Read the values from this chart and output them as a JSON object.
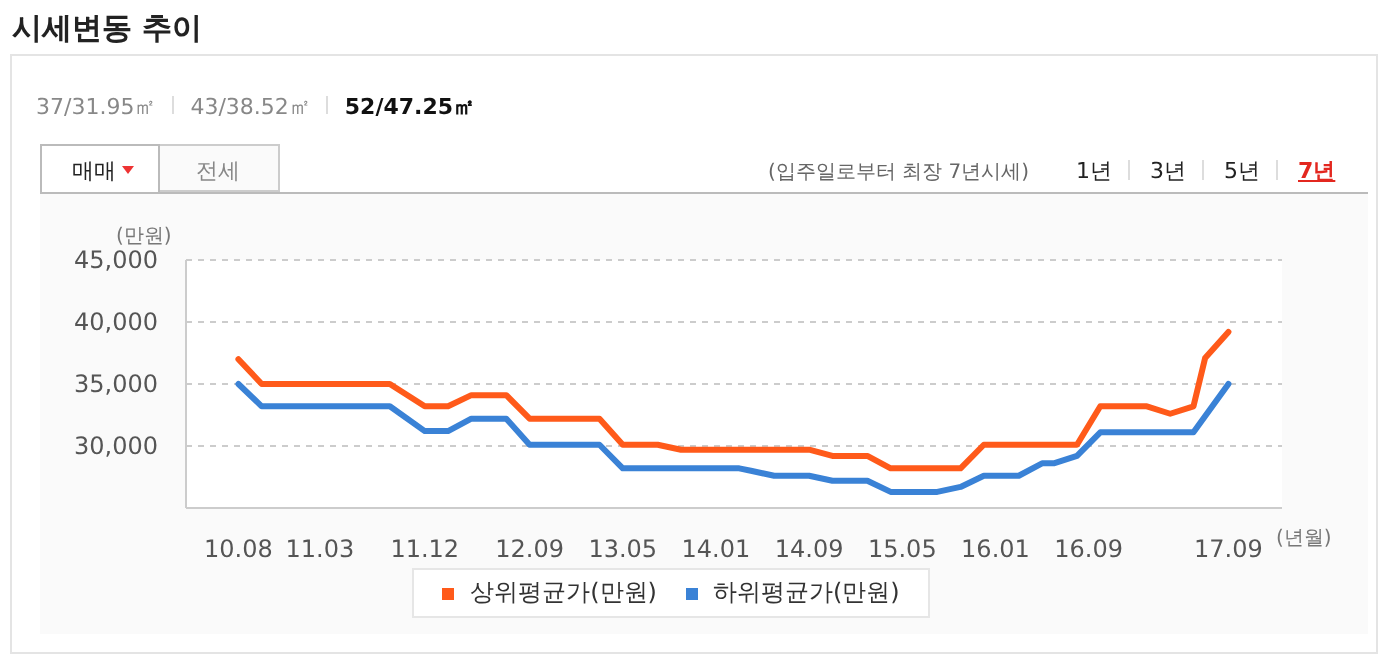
{
  "chart_data": {
    "type": "line",
    "title": "시세변동 추이",
    "annotations": [
      "37/31.95㎡",
      "43/38.52㎡",
      "52/47.25㎡",
      "매매",
      "전세",
      "(입주일로부터 최장 7년시세)",
      "1년",
      "3년",
      "5년",
      "7년"
    ],
    "ylabel": "(만원)",
    "xlabel": "(년월)",
    "xlim": [
      "2010-03-16",
      "2018-01-19"
    ],
    "xticks": [
      {
        "value": "2010-08",
        "label": "10.08"
      },
      {
        "value": "2011-03",
        "label": "11.03"
      },
      {
        "value": "2011-12",
        "label": "11.12"
      },
      {
        "value": "2012-09",
        "label": "12.09"
      },
      {
        "value": "2013-05",
        "label": "13.05"
      },
      {
        "value": "2014-01",
        "label": "14.01"
      },
      {
        "value": "2014-09",
        "label": "14.09"
      },
      {
        "value": "2015-05",
        "label": "15.05"
      },
      {
        "value": "2016-01",
        "label": "16.01"
      },
      {
        "value": "2016-09",
        "label": "16.09"
      },
      {
        "value": "2017-09",
        "label": "17.09"
      }
    ],
    "ylim": [
      25000,
      45000
    ],
    "yticks": [
      {
        "value": 25000,
        "label": null
      },
      {
        "value": 30000,
        "label": "30,000"
      },
      {
        "value": 35000,
        "label": "35,000"
      },
      {
        "value": 40000,
        "label": "40,000"
      },
      {
        "value": 45000,
        "label": "45,000"
      }
    ],
    "grid": "y",
    "legend": "bottom",
    "series": [
      {
        "name": "상위평균가(만원)",
        "color": "#ff5a1a",
        "x": [
          "2010-08",
          "2010-10",
          "2011-09",
          "2011-12",
          "2012-02",
          "2012-04",
          "2012-07",
          "2012-09",
          "2013-03",
          "2013-05",
          "2013-08",
          "2013-10",
          "2014-09",
          "2014-11",
          "2015-02",
          "2015-04",
          "2015-10",
          "2015-12",
          "2016-08",
          "2016-10",
          "2017-02",
          "2017-04",
          "2017-06",
          "2017-07",
          "2017-09"
        ],
        "values": [
          37000,
          35000,
          35000,
          33200,
          33200,
          34100,
          34100,
          32200,
          32200,
          30100,
          30100,
          29700,
          29700,
          29200,
          29200,
          28200,
          28200,
          30100,
          30100,
          33200,
          33200,
          32600,
          33200,
          37100,
          39200
        ]
      },
      {
        "name": "하위평균가(만원)",
        "color": "#3a82d6",
        "x": [
          "2010-08",
          "2010-10",
          "2011-09",
          "2011-12",
          "2012-02",
          "2012-04",
          "2012-07",
          "2012-09",
          "2013-03",
          "2013-05",
          "2014-03",
          "2014-04",
          "2014-06",
          "2014-09",
          "2014-11",
          "2015-02",
          "2015-04",
          "2015-08",
          "2015-10",
          "2015-12",
          "2016-03",
          "2016-05",
          "2016-06",
          "2016-08",
          "2016-10",
          "2017-06",
          "2017-09"
        ],
        "values": [
          35000,
          33200,
          33200,
          31200,
          31200,
          32200,
          32200,
          30100,
          30100,
          28200,
          28200,
          28000,
          27600,
          27600,
          27200,
          27200,
          26300,
          26300,
          26700,
          27600,
          27600,
          28600,
          28600,
          29200,
          31100,
          31100,
          35000
        ]
      }
    ]
  }
}
